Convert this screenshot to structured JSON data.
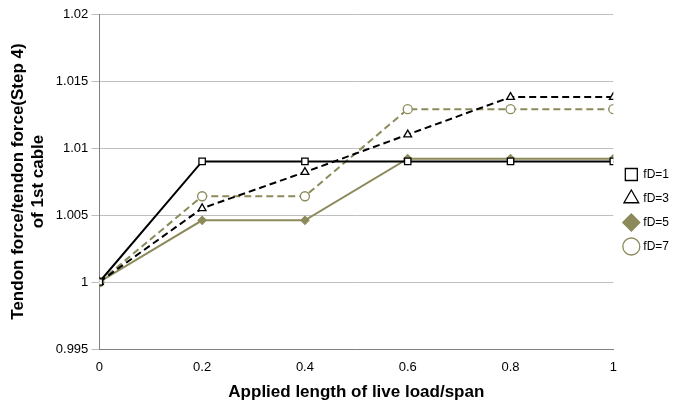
{
  "chart_data": {
    "type": "line",
    "x_label": "Applied length of live load/span",
    "y_label": [
      "Tendon force/tendon force(Step 4)",
      "of 1st cable"
    ],
    "x": [
      0,
      0.2,
      0.4,
      0.6,
      0.8,
      1
    ],
    "xlim": [
      0,
      1
    ],
    "xticks": [
      0,
      0.2,
      0.4,
      0.6,
      0.8,
      1
    ],
    "ylim": [
      0.995,
      1.02
    ],
    "yticks": [
      0.995,
      1,
      1.005,
      1.01,
      1.015,
      1.02
    ],
    "grid": "y",
    "legend": "right",
    "series": [
      {
        "name": "fD=1",
        "color": "#000000",
        "marker": "open-square",
        "line_style": "solid",
        "values": [
          1,
          1.009,
          1.009,
          1.009,
          1.009,
          1.009
        ]
      },
      {
        "name": "fD=3",
        "color": "#000000",
        "marker": "open-triangle",
        "line_style": "dashed",
        "values": [
          1,
          1.0055,
          1.0082,
          1.011,
          1.0138,
          1.0138
        ]
      },
      {
        "name": "fD=5",
        "color": "#8c8a5a",
        "marker": "filled-diamond",
        "line_style": "solid",
        "values": [
          1,
          1.0046,
          1.0046,
          1.0092,
          1.0092,
          1.0092
        ]
      },
      {
        "name": "fD=7",
        "color": "#8c8a5a",
        "marker": "open-circle",
        "line_style": "dashed",
        "values": [
          1,
          1.0064,
          1.0064,
          1.0129,
          1.0129,
          1.0129
        ]
      }
    ]
  }
}
